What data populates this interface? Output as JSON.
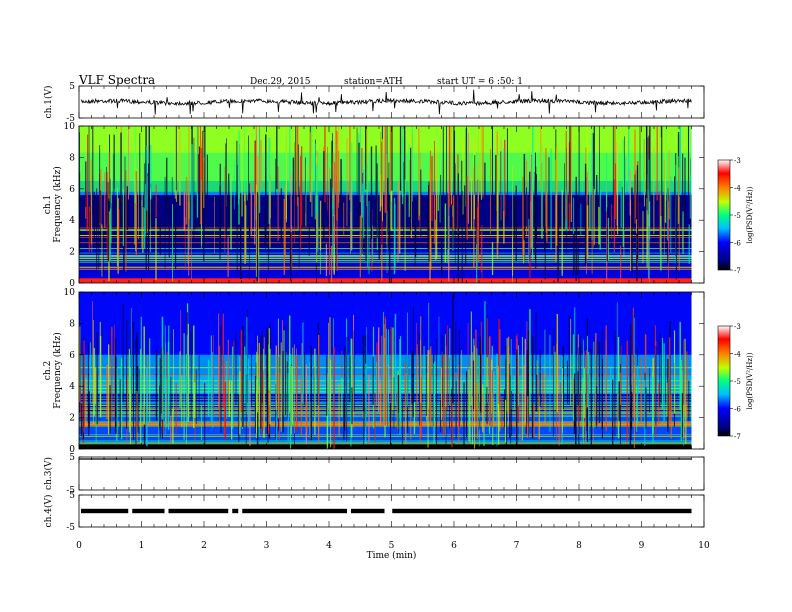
{
  "header": {
    "title": "VLF  Spectra",
    "date": "Dec.29, 2015",
    "station": "station=ATH",
    "start": "start  UT  =   6  :50: 1"
  },
  "chart_data": [
    {
      "type": "line",
      "name": "ch1-waveform",
      "ylabel": "ch.1(V)",
      "ylim": [
        -5,
        5
      ],
      "yticks": [
        "5",
        "-5"
      ],
      "xlim": [
        0,
        10
      ],
      "level": 0.0,
      "note_level": "trace centered near 0 V with spikes"
    },
    {
      "type": "heatmap",
      "name": "ch1-spectrogram",
      "ylabel": "ch.1\nFrequency  (kHz)",
      "ylabel_lines": [
        "ch.1",
        "Frequency  (kHz)"
      ],
      "ylim": [
        0,
        10
      ],
      "yticks": [
        "0",
        "2",
        "4",
        "6",
        "8",
        "10"
      ],
      "xlim": [
        0,
        10
      ],
      "data_end_min": 9.8,
      "colorbar": {
        "label": "log(PSD(V²/Hz))",
        "range": [
          -7,
          -3
        ],
        "ticks": [
          "-3",
          "-4",
          "-5",
          "-6",
          "-7"
        ]
      }
    },
    {
      "type": "heatmap",
      "name": "ch2-spectrogram",
      "ylabel_lines": [
        "ch.2",
        "Frequency  (kHz)"
      ],
      "ylim": [
        0,
        10
      ],
      "yticks": [
        "0",
        "2",
        "4",
        "6",
        "8",
        "10"
      ],
      "xlim": [
        0,
        10
      ],
      "data_end_min": 9.8,
      "colorbar": {
        "label": "log(PSD(V²/Hz))",
        "range": [
          -7,
          -3
        ],
        "ticks": [
          "-3",
          "-4",
          "-5",
          "-6",
          "-7"
        ]
      }
    },
    {
      "type": "line",
      "name": "ch3-waveform",
      "ylabel": "ch.3(V)",
      "ylim": [
        -5,
        5
      ],
      "yticks": [
        "5",
        "-5"
      ],
      "xlim": [
        0,
        10
      ],
      "level": 5.0
    },
    {
      "type": "line",
      "name": "ch4-waveform",
      "ylabel": "ch.4(V)",
      "ylim": [
        -5,
        5
      ],
      "yticks": [
        "5",
        "-5"
      ],
      "xlim": [
        0,
        10
      ],
      "level": 0.0,
      "gaps_min": [
        0.82,
        1.4,
        2.42,
        2.58,
        4.32,
        4.92,
        4.98
      ]
    }
  ],
  "xaxis": {
    "label": "Time  (min)",
    "ticks": [
      "0",
      "1",
      "2",
      "3",
      "4",
      "5",
      "6",
      "7",
      "8",
      "9",
      "10"
    ]
  },
  "colors": {
    "waveform": "#000000",
    "spectrogram_low": "#000080",
    "spectrogram_high": "#ff0000"
  }
}
